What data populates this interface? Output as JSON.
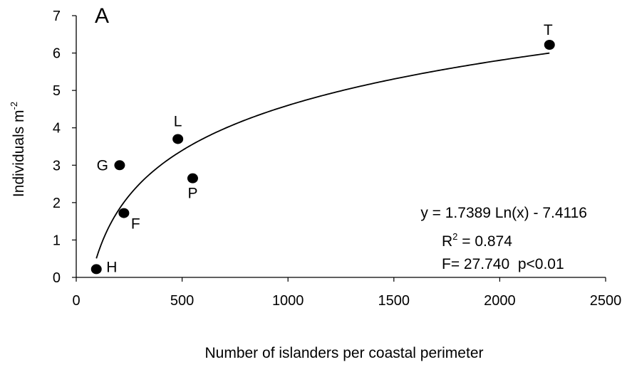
{
  "chart_data": {
    "type": "scatter",
    "title": "",
    "panel_label": "A",
    "xlabel": "Number of islanders per coastal perimeter",
    "ylabel": {
      "main": "Individuals  m",
      "superscript": "-2"
    },
    "xlim": [
      0,
      2500
    ],
    "ylim": [
      0,
      7
    ],
    "xticks": [
      "0",
      "500",
      "1000",
      "1500",
      "2000",
      "2500"
    ],
    "yticks": [
      "0",
      "1",
      "2",
      "3",
      "4",
      "5",
      "6",
      "7"
    ],
    "grid": false,
    "points": [
      {
        "label": "H",
        "x": 95,
        "y": 0.22
      },
      {
        "label": "F",
        "x": 225,
        "y": 1.72
      },
      {
        "label": "G",
        "x": 205,
        "y": 3.0
      },
      {
        "label": "L",
        "x": 480,
        "y": 3.7
      },
      {
        "label": "P",
        "x": 550,
        "y": 2.65
      },
      {
        "label": "T",
        "x": 2235,
        "y": 6.22
      }
    ],
    "fit": {
      "type": "logarithmic",
      "slope": 1.7389,
      "intercept": -7.4116,
      "x_range": [
        95,
        2235
      ]
    },
    "annotations": {
      "equation": "y = 1.7389 Ln(x) - 7.4116",
      "r2_prefix": "R",
      "r2_sup": "2",
      "r2_value": " = 0.874",
      "stats": "F= 27.740  p<0.01"
    },
    "colors": {
      "marker": "#000000",
      "line": "#000000",
      "axis": "#000000"
    }
  }
}
